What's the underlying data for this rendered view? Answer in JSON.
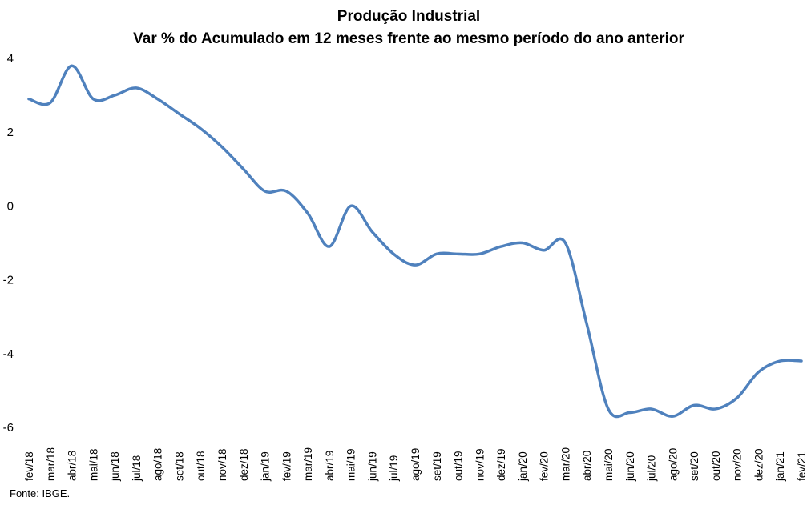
{
  "chart_data": {
    "type": "line",
    "title": "Produção Industrial",
    "subtitle": "Var % do Acumulado em 12 meses frente ao mesmo período do ano anterior",
    "xlabel": "",
    "ylabel": "",
    "ylim": [
      -6,
      4
    ],
    "yticks": [
      4,
      2,
      0,
      -2,
      -4,
      -6
    ],
    "grid": false,
    "legend": "none",
    "color": "#4F81BD",
    "categories": [
      "fev/18",
      "mar/18",
      "abr/18",
      "mai/18",
      "jun/18",
      "jul/18",
      "ago/18",
      "set/18",
      "out/18",
      "nov/18",
      "dez/18",
      "jan/19",
      "fev/19",
      "mar/19",
      "abr/19",
      "mai/19",
      "jun/19",
      "jul/19",
      "ago/19",
      "set/19",
      "out/19",
      "nov/19",
      "dez/19",
      "jan/20",
      "fev/20",
      "mar/20",
      "abr/20",
      "mai/20",
      "jun/20",
      "jul/20",
      "ago/20",
      "set/20",
      "out/20",
      "nov/20",
      "dez/20",
      "jan/21",
      "fev/21"
    ],
    "series": [
      {
        "name": "Produção Industrial",
        "values": [
          2.9,
          2.8,
          3.8,
          2.9,
          3.0,
          3.2,
          2.9,
          2.5,
          2.1,
          1.6,
          1.0,
          0.4,
          0.4,
          -0.2,
          -1.1,
          0.0,
          -0.7,
          -1.3,
          -1.6,
          -1.3,
          -1.3,
          -1.3,
          -1.1,
          -1.0,
          -1.2,
          -1.0,
          -3.2,
          -5.5,
          -5.6,
          -5.5,
          -5.7,
          -5.4,
          -5.5,
          -5.2,
          -4.5,
          -4.2,
          -4.2
        ]
      }
    ]
  },
  "source": "Fonte: IBGE."
}
